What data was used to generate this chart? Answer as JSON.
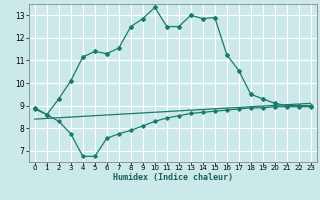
{
  "xlabel": "Humidex (Indice chaleur)",
  "xlim": [
    -0.5,
    23.5
  ],
  "ylim": [
    6.5,
    13.5
  ],
  "yticks": [
    7,
    8,
    9,
    10,
    11,
    12,
    13
  ],
  "xticks": [
    0,
    1,
    2,
    3,
    4,
    5,
    6,
    7,
    8,
    9,
    10,
    11,
    12,
    13,
    14,
    15,
    16,
    17,
    18,
    19,
    20,
    21,
    22,
    23
  ],
  "bg_color": "#cce9e9",
  "grid_color": "#ffffff",
  "line_color": "#1a7a6e",
  "line1_x": [
    0,
    1,
    2,
    3,
    4,
    5,
    6,
    7,
    8,
    9,
    10,
    11,
    12,
    13,
    14,
    15,
    16,
    17,
    18,
    19,
    20,
    21,
    22,
    23
  ],
  "line1_y": [
    8.9,
    8.6,
    9.3,
    10.1,
    11.15,
    11.4,
    11.3,
    11.55,
    12.5,
    12.85,
    13.35,
    12.5,
    12.5,
    13.0,
    12.85,
    12.9,
    11.25,
    10.55,
    9.5,
    9.3,
    9.1,
    9.0,
    9.0,
    9.0
  ],
  "line2_x": [
    0,
    23
  ],
  "line2_y": [
    8.4,
    9.1
  ],
  "line3_x": [
    0,
    1,
    2,
    3,
    4,
    5,
    6,
    7,
    8,
    9,
    10,
    11,
    12,
    13,
    14,
    15,
    16,
    17,
    18,
    19,
    20,
    21,
    22,
    23
  ],
  "line3_y": [
    8.85,
    8.6,
    8.3,
    7.75,
    6.75,
    6.75,
    7.55,
    7.75,
    7.9,
    8.1,
    8.3,
    8.45,
    8.55,
    8.65,
    8.7,
    8.75,
    8.8,
    8.85,
    8.9,
    8.9,
    8.95,
    8.95,
    8.95,
    8.95
  ]
}
